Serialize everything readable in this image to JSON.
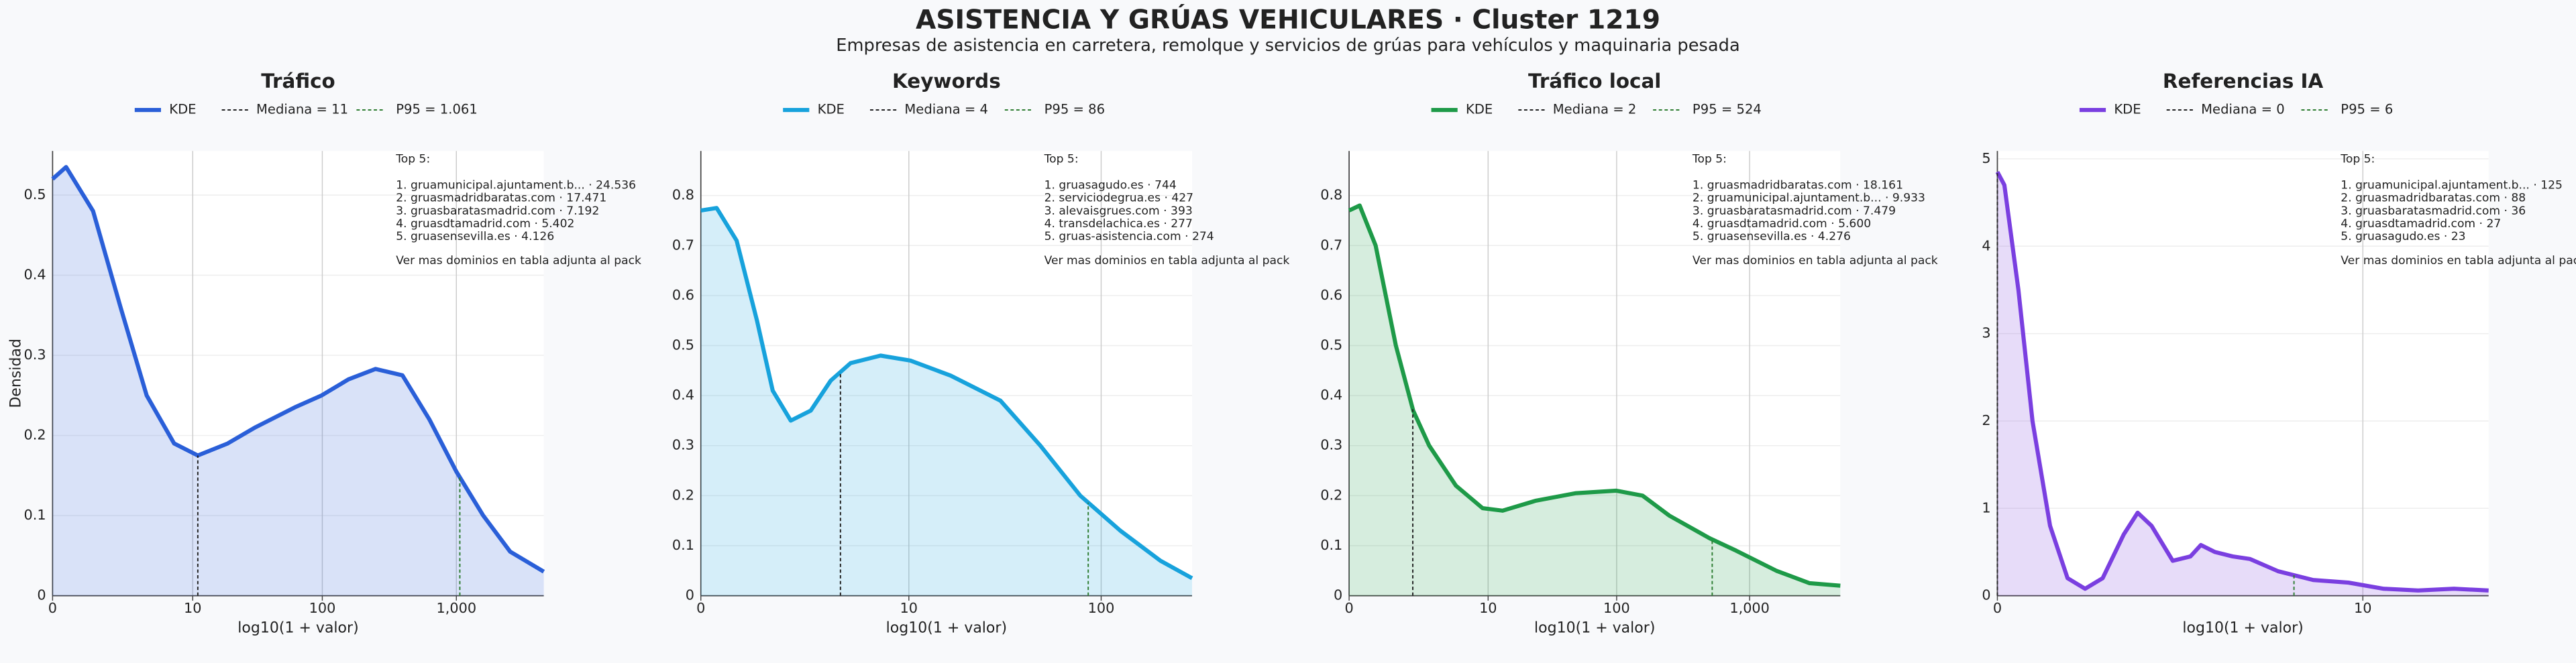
{
  "title": "ASISTENCIA Y GRÚAS VEHICULARES · Cluster 1219",
  "subtitle": "Empresas de asistencia en carretera, remolque y servicios de grúas para vehículos y maquinaria pesada",
  "chart_data": [
    {
      "type": "area",
      "title": "Tráfico",
      "xlabel": "log10(1 + valor)",
      "ylabel": "Densidad",
      "xscale": "log1p",
      "xlim": [
        0,
        4466
      ],
      "xticks": [
        0,
        10,
        100,
        {
          "value": 1000,
          "label": "1,000"
        }
      ],
      "ylim": [
        0,
        0.555
      ],
      "yticks": [
        0.0,
        0.1,
        0.2,
        0.3,
        0.4,
        0.5
      ],
      "grid": true,
      "series": [
        {
          "name": "KDE",
          "color": "#2a5fd8",
          "x": [
            0,
            0.26,
            1,
            2.2,
            4,
            7,
            11,
            19,
            31,
            62,
            99,
            157,
            250,
            397,
            630,
            999,
            1584,
            2511,
            4466
          ],
          "values": [
            0.52,
            0.535,
            0.48,
            0.36,
            0.25,
            0.19,
            0.175,
            0.19,
            0.21,
            0.235,
            0.25,
            0.27,
            0.283,
            0.275,
            0.22,
            0.155,
            0.1,
            0.055,
            0.03
          ]
        }
      ],
      "median": {
        "name": "Mediana = 11",
        "value": 11,
        "color": "#222222"
      },
      "p95": {
        "name": "P95 = 1.061",
        "value": 1061,
        "color": "#2e7d32"
      },
      "annotation": {
        "title": "Top 5:",
        "items": [
          "1. gruamunicipal.ajuntament.b... · 24.536",
          "2. gruasmadridbaratas.com · 17.471",
          "3. gruasbaratasmadrid.com · 7.192",
          "4. gruasdtamadrid.com · 5.402",
          "5. gruasensevilla.es · 4.126"
        ],
        "footer": "Ver mas dominios en tabla adjunta al pack"
      }
    },
    {
      "type": "area",
      "title": "Keywords",
      "xlabel": "log10(1 + valor)",
      "xscale": "log1p",
      "xlim": [
        0,
        287
      ],
      "xticks": [
        0,
        10,
        100
      ],
      "ylim": [
        0,
        0.889
      ],
      "yticks": [
        0.0,
        0.1,
        0.2,
        0.3,
        0.4,
        0.5,
        0.6,
        0.7,
        0.8
      ],
      "grid": true,
      "series": [
        {
          "name": "KDE",
          "color": "#17a2dc",
          "x": [
            0,
            0.2,
            0.51,
            0.91,
            1.29,
            1.82,
            2.55,
            3.47,
            4.62,
            6.94,
            10.2,
            16.8,
            30.6,
            49.1,
            78.4,
            125,
            199,
            287
          ],
          "values": [
            0.77,
            0.775,
            0.71,
            0.55,
            0.41,
            0.35,
            0.37,
            0.43,
            0.465,
            0.48,
            0.47,
            0.44,
            0.39,
            0.3,
            0.2,
            0.13,
            0.07,
            0.035
          ]
        }
      ],
      "median": {
        "name": "Mediana = 4",
        "value": 4,
        "color": "#222222"
      },
      "p95": {
        "name": "P95 = 86",
        "value": 86,
        "color": "#2e7d32"
      },
      "annotation": {
        "title": "Top 5:",
        "items": [
          "1. gruasagudo.es · 744",
          "2. serviciodegrua.es · 427",
          "3. alevaisgrues.com · 393",
          "4. transdelachica.es · 277",
          "5. gruas-asistencia.com · 274"
        ],
        "footer": "Ver mas dominios en tabla adjunta al pack"
      }
    },
    {
      "type": "area",
      "title": "Tráfico local",
      "xlabel": "log10(1 + valor)",
      "xscale": "log1p",
      "xlim": [
        0,
        4785
      ],
      "xticks": [
        0,
        10,
        100,
        {
          "value": 1000,
          "label": "1,000"
        }
      ],
      "ylim": [
        0,
        0.889
      ],
      "yticks": [
        0.0,
        0.1,
        0.2,
        0.3,
        0.4,
        0.5,
        0.6,
        0.7,
        0.8
      ],
      "grid": true,
      "series": [
        {
          "name": "KDE",
          "color": "#1e9a48",
          "x": [
            0,
            0.2,
            0.58,
            1.24,
            2.02,
            2.98,
            5.31,
            9,
            13.1,
            24.1,
            49.1,
            99,
            157,
            250,
            500,
            793,
            1584,
            2817,
            4785
          ],
          "values": [
            0.77,
            0.78,
            0.7,
            0.5,
            0.37,
            0.3,
            0.22,
            0.175,
            0.17,
            0.19,
            0.205,
            0.21,
            0.2,
            0.16,
            0.115,
            0.09,
            0.05,
            0.025,
            0.02
          ]
        }
      ],
      "median": {
        "name": "Mediana = 2",
        "value": 2,
        "color": "#222222"
      },
      "p95": {
        "name": "P95 = 524",
        "value": 524,
        "color": "#2e7d32"
      },
      "annotation": {
        "title": "Top 5:",
        "items": [
          "1. gruasmadridbaratas.com · 18.161",
          "2. gruamunicipal.ajuntament.b... · 9.933",
          "3. gruasbaratasmadrid.com · 7.479",
          "4. gruasdtamadrid.com · 5.600",
          "5. gruasensevilla.es · 4.276"
        ],
        "footer": "Ver mas dominios en tabla adjunta al pack"
      }
    },
    {
      "type": "area",
      "title": "Referencias IA",
      "xlabel": "log10(1 + valor)",
      "xscale": "log1p",
      "xlim": [
        0,
        24.1
      ],
      "xticks": [
        0,
        10
      ],
      "ylim": [
        0,
        5.09
      ],
      "yticks": [
        0,
        1,
        2,
        3,
        4,
        5
      ],
      "grid": true,
      "series": [
        {
          "name": "KDE",
          "color": "#7a3fe0",
          "x": [
            0,
            0.047,
            0.148,
            0.259,
            0.413,
            0.585,
            0.778,
            0.995,
            1.29,
            1.51,
            1.75,
            2.16,
            2.55,
            2.8,
            3.17,
            3.68,
            4.25,
            5.31,
            6.94,
            9,
            11.6,
            14.8,
            19,
            24.1
          ],
          "values": [
            4.85,
            4.7,
            3.5,
            2.0,
            0.8,
            0.2,
            0.08,
            0.2,
            0.7,
            0.95,
            0.8,
            0.4,
            0.45,
            0.58,
            0.5,
            0.45,
            0.42,
            0.28,
            0.18,
            0.15,
            0.08,
            0.06,
            0.08,
            0.06
          ]
        }
      ],
      "median": {
        "name": "Mediana = 0",
        "value": 0,
        "color": "#222222"
      },
      "p95": {
        "name": "P95 = 6",
        "value": 6,
        "color": "#2e7d32"
      },
      "annotation": {
        "title": "Top 5:",
        "items": [
          "1. gruamunicipal.ajuntament.b... · 125",
          "2. gruasmadridbaratas.com · 88",
          "3. gruasbaratasmadrid.com · 36",
          "4. gruasdtamadrid.com · 27",
          "5. gruasagudo.es · 23"
        ],
        "footer": "Ver mas dominios en tabla adjunta al pack"
      }
    }
  ]
}
